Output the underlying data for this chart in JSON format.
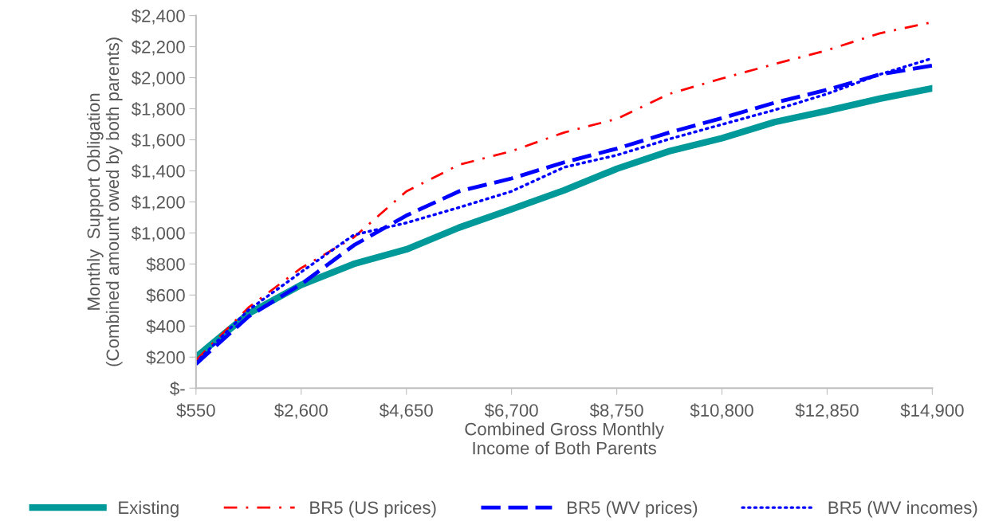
{
  "chart_data": {
    "type": "line",
    "xlabel": "Combined Gross Monthly\nIncome of Both Parents",
    "ylabel": "Monthly  Support Obligation\n(Combined amount owed by both parents)",
    "x": [
      550,
      1575,
      2600,
      3625,
      4650,
      5675,
      6700,
      7725,
      8750,
      9775,
      10800,
      11825,
      12850,
      13875,
      14900
    ],
    "series": [
      {
        "name": "Existing",
        "color": "#009999",
        "line_style": "solid",
        "values": [
          200,
          480,
          665,
          800,
          894,
          1034,
          1153,
          1275,
          1413,
          1527,
          1610,
          1714,
          1787,
          1865,
          1932
        ]
      },
      {
        "name": "BR5 (US prices)",
        "color": "#ff0000",
        "line_style": "dashdot",
        "values": [
          180,
          520,
          774,
          971,
          1268,
          1439,
          1527,
          1647,
          1735,
          1896,
          1995,
          2088,
          2177,
          2286,
          2358
        ]
      },
      {
        "name": "BR5 (WV prices)",
        "color": "#0000ff",
        "line_style": "dashed",
        "values": [
          156,
          462,
          670,
          920,
          1112,
          1268,
          1351,
          1455,
          1543,
          1647,
          1740,
          1839,
          1922,
          2021,
          2078
        ]
      },
      {
        "name": "BR5 (WV incomes)",
        "color": "#0000ff",
        "line_style": "dotted",
        "values": [
          165,
          504,
          748,
          987,
          1065,
          1164,
          1268,
          1423,
          1501,
          1605,
          1699,
          1792,
          1896,
          2021,
          2125
        ]
      }
    ],
    "xlim": [
      550,
      14900
    ],
    "xticks": [
      {
        "value": 550,
        "label": "$550"
      },
      {
        "value": 2600,
        "label": "$2,600"
      },
      {
        "value": 4650,
        "label": "$4,650"
      },
      {
        "value": 6700,
        "label": "$6,700"
      },
      {
        "value": 8750,
        "label": "$8,750"
      },
      {
        "value": 10800,
        "label": "$10,800"
      },
      {
        "value": 12850,
        "label": "$12,850"
      },
      {
        "value": 14900,
        "label": "$14,900"
      }
    ],
    "ylim": [
      0,
      2400
    ],
    "yticks": [
      {
        "value": 0,
        "label": "$-"
      },
      {
        "value": 200,
        "label": "$200"
      },
      {
        "value": 400,
        "label": "$400"
      },
      {
        "value": 600,
        "label": "$600"
      },
      {
        "value": 800,
        "label": "$800"
      },
      {
        "value": 1000,
        "label": "$1,000"
      },
      {
        "value": 1200,
        "label": "$1,200"
      },
      {
        "value": 1400,
        "label": "$1,400"
      },
      {
        "value": 1600,
        "label": "$1,600"
      },
      {
        "value": 1800,
        "label": "$1,800"
      },
      {
        "value": 2000,
        "label": "$2,000"
      },
      {
        "value": 2200,
        "label": "$2,200"
      },
      {
        "value": 2400,
        "label": "$2,400"
      }
    ],
    "grid": false,
    "legend": "bottom"
  }
}
